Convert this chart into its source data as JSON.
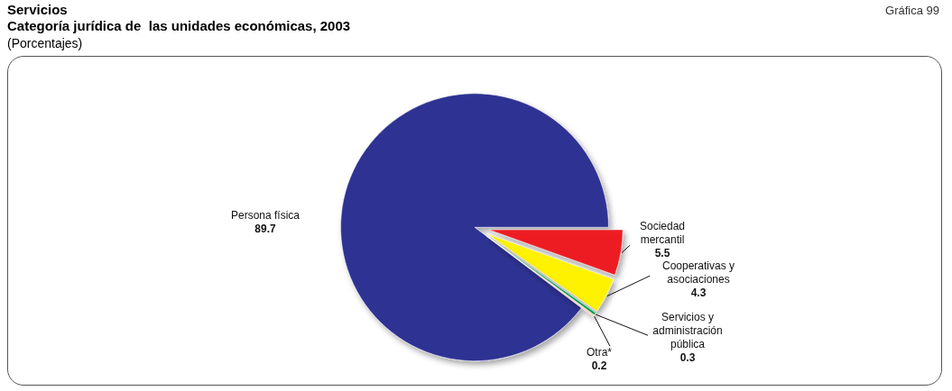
{
  "chart_data": {
    "type": "pie",
    "title": "Servicios",
    "subtitle": "Categoría jurídica de  las unidades económicas, 2003",
    "annotations": [
      "(Porcentajes)",
      "Gráfica 99"
    ],
    "categories": [
      "Sociedad mercantil",
      "Cooperativas y asociaciones",
      "Servicios y administración pública",
      "Otra*",
      "Persona física"
    ],
    "values": [
      5.5,
      4.3,
      0.3,
      0.2,
      89.7
    ],
    "colors": [
      "#ed1c24",
      "#fff200",
      "#00a651",
      "#f9c9b0",
      "#2e3192"
    ],
    "data_labels": true,
    "legend": false
  }
}
